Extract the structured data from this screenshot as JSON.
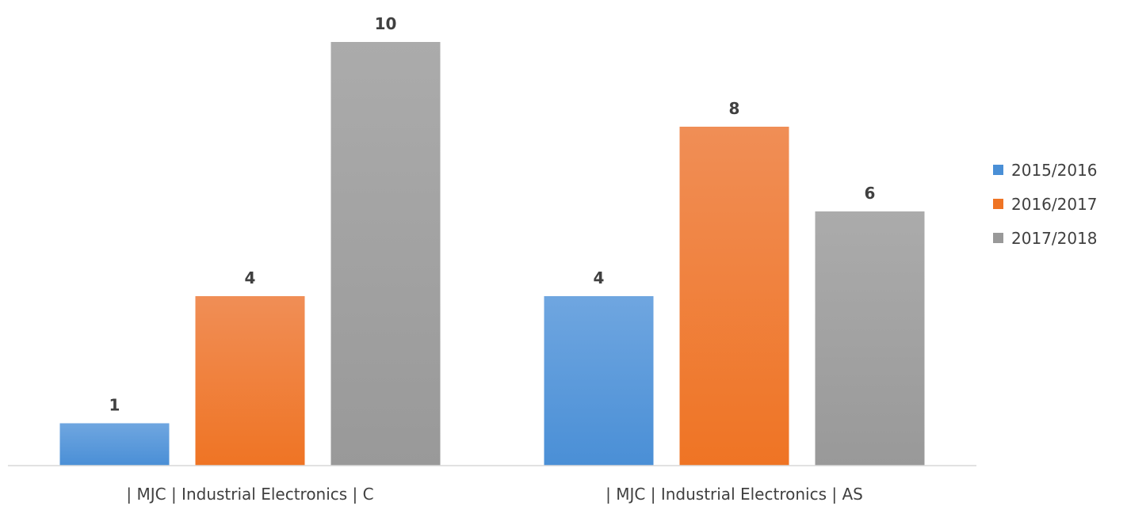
{
  "chart_data": {
    "type": "bar",
    "title": "",
    "xlabel": "",
    "ylabel": "",
    "categories": [
      "| MJC | Industrial Electronics | C",
      "| MJC | Industrial Electronics | AS"
    ],
    "series": [
      {
        "name": "2015/2016",
        "values": [
          1,
          4
        ],
        "color": "#4a8fd6",
        "color_light": "#6fa6e0"
      },
      {
        "name": "2016/2017",
        "values": [
          4,
          8
        ],
        "color": "#ef7424",
        "color_light": "#f08e56"
      },
      {
        "name": "2017/2018",
        "values": [
          10,
          6
        ],
        "color": "#999999",
        "color_light": "#ababab"
      }
    ],
    "ylim": [
      0,
      10
    ],
    "grid": false,
    "legend_position": "right",
    "data_labels": true,
    "axis_line_color": "#d9d9d9"
  }
}
